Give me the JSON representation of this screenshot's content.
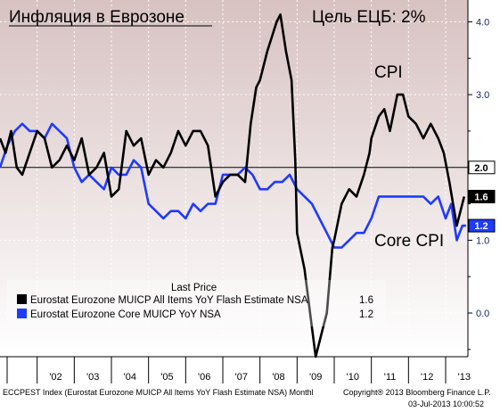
{
  "title": "Инфляция в Еврозоне",
  "target_label": "Цель ЕЦБ: 2%",
  "annotations": {
    "cpi": "CPI",
    "core": "Core CPI"
  },
  "legend": {
    "header": "Last Price",
    "items": [
      {
        "name": "Eurostat Eurozone MUICP All Items YoY Flash Estimate NSA",
        "value": "1.6",
        "color": "#000000"
      },
      {
        "name": "Eurostat Eurozone Core MUICP YoY NSA",
        "value": "1.2",
        "color": "#1f3bff"
      }
    ]
  },
  "footer": {
    "left": "ECCPEST Index (Eurostat Eurozone MUICP All Items YoY Flash Estimate NSA)  Monthl",
    "right": "Copyright® 2013 Bloomberg Finance L.P.",
    "date": "03-Jul-2013 10:00:52"
  },
  "colors": {
    "cpi": "#000000",
    "core": "#1f3bff",
    "target_badge_bg": "#ffffff",
    "cpi_badge_bg": "#000000",
    "core_badge_bg": "#1f3bff",
    "bg_top": "#d8c2c2",
    "bg_bottom": "#ffffff"
  },
  "chart_data": {
    "type": "line",
    "x_tick_labels": [
      "'02",
      "'03",
      "'04",
      "'05",
      "'06",
      "'07",
      "'08",
      "'09",
      "'10",
      "'11",
      "'12",
      "'13"
    ],
    "y_tick_labels": [
      "0.0",
      "1.0",
      "2.0",
      "3.0",
      "4.0"
    ],
    "ylim": [
      -0.6,
      4.3
    ],
    "xlim": [
      2001.0,
      2013.6
    ],
    "reference_line": {
      "value": 2.0,
      "label": "2.0"
    },
    "last_values": {
      "cpi": "1.6",
      "core": "1.2"
    },
    "series": [
      {
        "name": "CPI",
        "points": [
          [
            2001.0,
            2.4
          ],
          [
            2001.15,
            2.2
          ],
          [
            2001.3,
            2.5
          ],
          [
            2001.45,
            2.0
          ],
          [
            2001.6,
            1.9
          ],
          [
            2001.8,
            2.2
          ],
          [
            2002.0,
            2.5
          ],
          [
            2002.2,
            2.4
          ],
          [
            2002.4,
            2.0
          ],
          [
            2002.6,
            2.1
          ],
          [
            2002.8,
            2.3
          ],
          [
            2003.0,
            2.1
          ],
          [
            2003.2,
            2.4
          ],
          [
            2003.4,
            1.9
          ],
          [
            2003.6,
            2.0
          ],
          [
            2003.8,
            2.2
          ],
          [
            2004.0,
            1.6
          ],
          [
            2004.2,
            1.7
          ],
          [
            2004.4,
            2.5
          ],
          [
            2004.6,
            2.3
          ],
          [
            2004.8,
            2.4
          ],
          [
            2005.0,
            1.9
          ],
          [
            2005.2,
            2.1
          ],
          [
            2005.4,
            2.0
          ],
          [
            2005.6,
            2.2
          ],
          [
            2005.8,
            2.5
          ],
          [
            2006.0,
            2.3
          ],
          [
            2006.2,
            2.5
          ],
          [
            2006.4,
            2.5
          ],
          [
            2006.6,
            2.3
          ],
          [
            2006.8,
            1.6
          ],
          [
            2007.0,
            1.8
          ],
          [
            2007.2,
            1.9
          ],
          [
            2007.4,
            1.9
          ],
          [
            2007.6,
            1.8
          ],
          [
            2007.75,
            2.6
          ],
          [
            2007.9,
            3.1
          ],
          [
            2008.0,
            3.2
          ],
          [
            2008.2,
            3.6
          ],
          [
            2008.45,
            4.0
          ],
          [
            2008.55,
            4.1
          ],
          [
            2008.7,
            3.6
          ],
          [
            2008.85,
            3.2
          ],
          [
            2008.95,
            2.1
          ],
          [
            2009.0,
            1.1
          ],
          [
            2009.2,
            0.6
          ],
          [
            2009.35,
            0.0
          ],
          [
            2009.5,
            -0.6
          ],
          [
            2009.65,
            -0.3
          ],
          [
            2009.8,
            0.0
          ],
          [
            2009.95,
            0.9
          ],
          [
            2010.0,
            1.0
          ],
          [
            2010.2,
            1.5
          ],
          [
            2010.4,
            1.7
          ],
          [
            2010.6,
            1.6
          ],
          [
            2010.8,
            1.9
          ],
          [
            2010.95,
            2.2
          ],
          [
            2011.0,
            2.4
          ],
          [
            2011.2,
            2.7
          ],
          [
            2011.35,
            2.8
          ],
          [
            2011.5,
            2.5
          ],
          [
            2011.7,
            3.0
          ],
          [
            2011.85,
            3.0
          ],
          [
            2012.0,
            2.7
          ],
          [
            2012.2,
            2.6
          ],
          [
            2012.4,
            2.4
          ],
          [
            2012.6,
            2.6
          ],
          [
            2012.8,
            2.4
          ],
          [
            2012.95,
            2.2
          ],
          [
            2013.1,
            1.8
          ],
          [
            2013.3,
            1.2
          ],
          [
            2013.5,
            1.6
          ]
        ]
      },
      {
        "name": "Core CPI",
        "points": [
          [
            2001.0,
            2.0
          ],
          [
            2001.2,
            2.3
          ],
          [
            2001.4,
            2.5
          ],
          [
            2001.6,
            2.6
          ],
          [
            2001.8,
            2.5
          ],
          [
            2002.0,
            2.5
          ],
          [
            2002.2,
            2.4
          ],
          [
            2002.4,
            2.6
          ],
          [
            2002.6,
            2.5
          ],
          [
            2002.8,
            2.4
          ],
          [
            2003.0,
            2.0
          ],
          [
            2003.2,
            1.8
          ],
          [
            2003.4,
            1.9
          ],
          [
            2003.6,
            1.8
          ],
          [
            2003.8,
            1.7
          ],
          [
            2004.0,
            2.0
          ],
          [
            2004.2,
            1.9
          ],
          [
            2004.4,
            1.9
          ],
          [
            2004.6,
            2.1
          ],
          [
            2004.8,
            2.0
          ],
          [
            2005.0,
            1.5
          ],
          [
            2005.2,
            1.4
          ],
          [
            2005.4,
            1.3
          ],
          [
            2005.6,
            1.4
          ],
          [
            2005.8,
            1.4
          ],
          [
            2006.0,
            1.3
          ],
          [
            2006.2,
            1.5
          ],
          [
            2006.4,
            1.4
          ],
          [
            2006.6,
            1.5
          ],
          [
            2006.8,
            1.5
          ],
          [
            2007.0,
            1.9
          ],
          [
            2007.2,
            1.9
          ],
          [
            2007.4,
            1.9
          ],
          [
            2007.6,
            2.0
          ],
          [
            2007.8,
            1.9
          ],
          [
            2008.0,
            1.7
          ],
          [
            2008.2,
            1.7
          ],
          [
            2008.4,
            1.8
          ],
          [
            2008.6,
            1.8
          ],
          [
            2008.8,
            1.9
          ],
          [
            2009.0,
            1.7
          ],
          [
            2009.2,
            1.6
          ],
          [
            2009.4,
            1.5
          ],
          [
            2009.6,
            1.3
          ],
          [
            2009.8,
            1.1
          ],
          [
            2010.0,
            0.9
          ],
          [
            2010.2,
            0.9
          ],
          [
            2010.4,
            1.0
          ],
          [
            2010.6,
            1.1
          ],
          [
            2010.8,
            1.1
          ],
          [
            2011.0,
            1.3
          ],
          [
            2011.2,
            1.6
          ],
          [
            2011.4,
            1.6
          ],
          [
            2011.6,
            1.6
          ],
          [
            2011.8,
            1.6
          ],
          [
            2012.0,
            1.6
          ],
          [
            2012.2,
            1.6
          ],
          [
            2012.4,
            1.6
          ],
          [
            2012.6,
            1.5
          ],
          [
            2012.8,
            1.6
          ],
          [
            2013.0,
            1.3
          ],
          [
            2013.15,
            1.5
          ],
          [
            2013.3,
            1.0
          ],
          [
            2013.45,
            1.2
          ],
          [
            2013.55,
            1.2
          ]
        ]
      }
    ]
  }
}
